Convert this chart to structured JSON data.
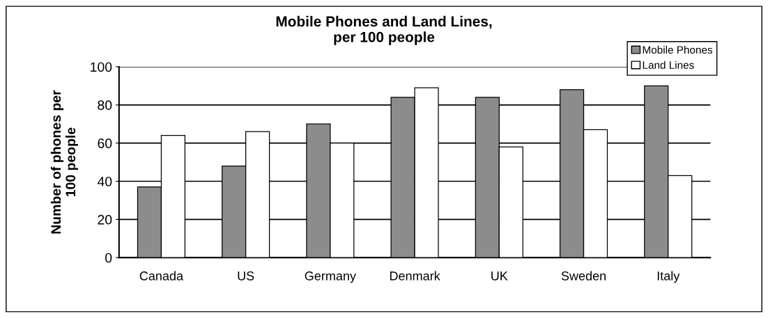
{
  "chart_data": {
    "type": "bar",
    "title": "Mobile Phones and Land Lines,\nper 100 people",
    "ylabel": "Number of phones per\n100 people",
    "categories": [
      "Canada",
      "US",
      "Germany",
      "Denmark",
      "UK",
      "Sweden",
      "Italy"
    ],
    "series": [
      {
        "name": "Mobile Phones",
        "color": "#8c8c8c",
        "values": [
          37,
          48,
          70,
          84,
          84,
          88,
          90
        ]
      },
      {
        "name": "Land Lines",
        "color": "#ffffff",
        "values": [
          64,
          66,
          60,
          89,
          58,
          67,
          43
        ]
      }
    ],
    "ylim": [
      0,
      100
    ],
    "yticks": [
      0,
      20,
      40,
      60,
      80,
      100
    ],
    "grid": "y",
    "legend": "top right"
  }
}
